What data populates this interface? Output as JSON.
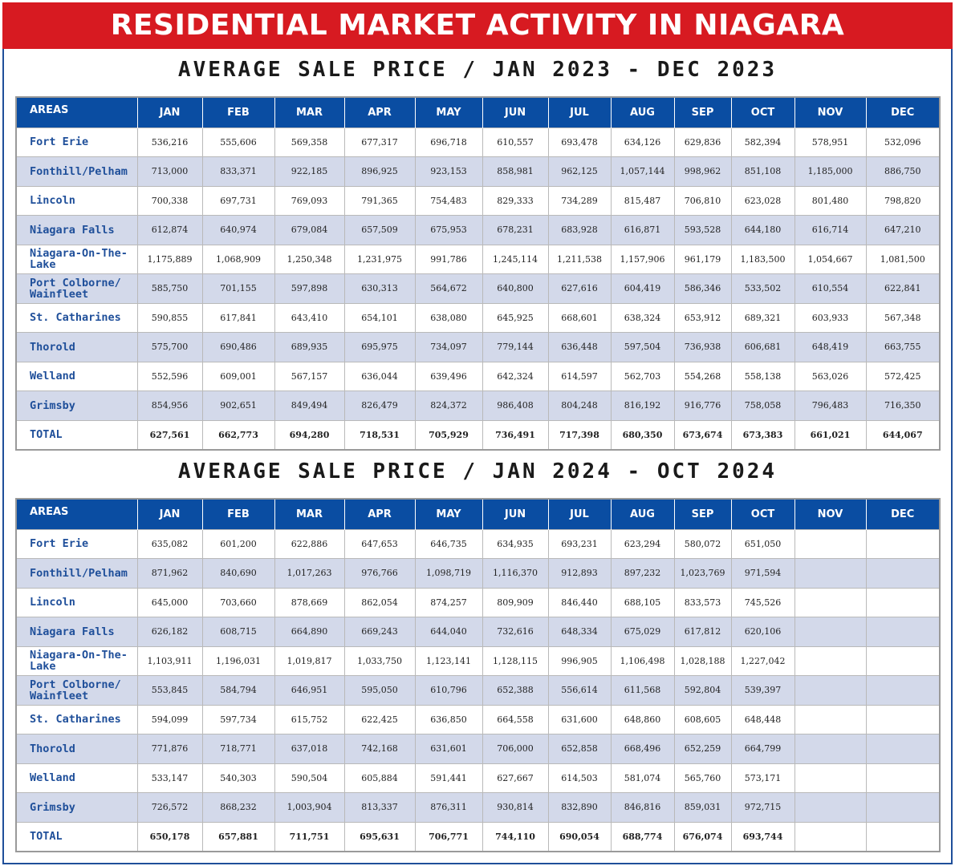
{
  "header": {
    "title": "RESIDENTIAL MARKET ACTIVITY IN NIAGARA"
  },
  "months": [
    "JAN",
    "FEB",
    "MAR",
    "APR",
    "MAY",
    "JUN",
    "JUL",
    "AUG",
    "SEP",
    "OCT",
    "NOV",
    "DEC"
  ],
  "tables": [
    {
      "title": "AVERAGE SALE PRICE / JAN 2023 - DEC 2023",
      "areas_header": "AREAS",
      "rows": [
        {
          "area": "Fort Erie",
          "values": [
            "536,216",
            "555,606",
            "569,358",
            "677,317",
            "696,718",
            "610,557",
            "693,478",
            "634,126",
            "629,836",
            "582,394",
            "578,951",
            "532,096"
          ]
        },
        {
          "area": "Fonthill/Pelham",
          "values": [
            "713,000",
            "833,371",
            "922,185",
            "896,925",
            "923,153",
            "858,981",
            "962,125",
            "1,057,144",
            "998,962",
            "851,108",
            "1,185,000",
            "886,750"
          ]
        },
        {
          "area": "Lincoln",
          "values": [
            "700,338",
            "697,731",
            "769,093",
            "791,365",
            "754,483",
            "829,333",
            "734,289",
            "815,487",
            "706,810",
            "623,028",
            "801,480",
            "798,820"
          ]
        },
        {
          "area": "Niagara Falls",
          "values": [
            "612,874",
            "640,974",
            "679,084",
            "657,509",
            "675,953",
            "678,231",
            "683,928",
            "616,871",
            "593,528",
            "644,180",
            "616,714",
            "647,210"
          ]
        },
        {
          "area": "Niagara-On-The-Lake",
          "values": [
            "1,175,889",
            "1,068,909",
            "1,250,348",
            "1,231,975",
            "991,786",
            "1,245,114",
            "1,211,538",
            "1,157,906",
            "961,179",
            "1,183,500",
            "1,054,667",
            "1,081,500"
          ]
        },
        {
          "area": "Port Colborne/ Wainfleet",
          "values": [
            "585,750",
            "701,155",
            "597,898",
            "630,313",
            "564,672",
            "640,800",
            "627,616",
            "604,419",
            "586,346",
            "533,502",
            "610,554",
            "622,841"
          ]
        },
        {
          "area": "St. Catharines",
          "values": [
            "590,855",
            "617,841",
            "643,410",
            "654,101",
            "638,080",
            "645,925",
            "668,601",
            "638,324",
            "653,912",
            "689,321",
            "603,933",
            "567,348"
          ]
        },
        {
          "area": "Thorold",
          "values": [
            "575,700",
            "690,486",
            "689,935",
            "695,975",
            "734,097",
            "779,144",
            "636,448",
            "597,504",
            "736,938",
            "606,681",
            "648,419",
            "663,755"
          ]
        },
        {
          "area": "Welland",
          "values": [
            "552,596",
            "609,001",
            "567,157",
            "636,044",
            "639,496",
            "642,324",
            "614,597",
            "562,703",
            "554,268",
            "558,138",
            "563,026",
            "572,425"
          ]
        },
        {
          "area": "Grimsby",
          "values": [
            "854,956",
            "902,651",
            "849,494",
            "826,479",
            "824,372",
            "986,408",
            "804,248",
            "816,192",
            "916,776",
            "758,058",
            "796,483",
            "716,350"
          ]
        },
        {
          "area": "TOTAL",
          "values": [
            "627,561",
            "662,773",
            "694,280",
            "718,531",
            "705,929",
            "736,491",
            "717,398",
            "680,350",
            "673,674",
            "673,383",
            "661,021",
            "644,067"
          ]
        }
      ]
    },
    {
      "title": "AVERAGE SALE PRICE / JAN 2024 - OCT 2024",
      "areas_header": "AREAS",
      "rows": [
        {
          "area": "Fort Erie",
          "values": [
            "635,082",
            "601,200",
            "622,886",
            "647,653",
            "646,735",
            "634,935",
            "693,231",
            "623,294",
            "580,072",
            "651,050",
            "",
            ""
          ]
        },
        {
          "area": "Fonthill/Pelham",
          "values": [
            "871,962",
            "840,690",
            "1,017,263",
            "976,766",
            "1,098,719",
            "1,116,370",
            "912,893",
            "897,232",
            "1,023,769",
            "971,594",
            "",
            ""
          ]
        },
        {
          "area": "Lincoln",
          "values": [
            "645,000",
            "703,660",
            "878,669",
            "862,054",
            "874,257",
            "809,909",
            "846,440",
            "688,105",
            "833,573",
            "745,526",
            "",
            ""
          ]
        },
        {
          "area": "Niagara Falls",
          "values": [
            "626,182",
            "608,715",
            "664,890",
            "669,243",
            "644,040",
            "732,616",
            "648,334",
            "675,029",
            "617,812",
            "620,106",
            "",
            ""
          ]
        },
        {
          "area": "Niagara-On-The-Lake",
          "values": [
            "1,103,911",
            "1,196,031",
            "1,019,817",
            "1,033,750",
            "1,123,141",
            "1,128,115",
            "996,905",
            "1,106,498",
            "1,028,188",
            "1,227,042",
            "",
            ""
          ]
        },
        {
          "area": "Port Colborne/ Wainfleet",
          "values": [
            "553,845",
            "584,794",
            "646,951",
            "595,050",
            "610,796",
            "652,388",
            "556,614",
            "611,568",
            "592,804",
            "539,397",
            "",
            ""
          ]
        },
        {
          "area": "St. Catharines",
          "values": [
            "594,099",
            "597,734",
            "615,752",
            "622,425",
            "636,850",
            "664,558",
            "631,600",
            "648,860",
            "608,605",
            "648,448",
            "",
            ""
          ]
        },
        {
          "area": "Thorold",
          "values": [
            "771,876",
            "718,771",
            "637,018",
            "742,168",
            "631,601",
            "706,000",
            "652,858",
            "668,496",
            "652,259",
            "664,799",
            "",
            ""
          ]
        },
        {
          "area": "Welland",
          "values": [
            "533,147",
            "540,303",
            "590,504",
            "605,884",
            "591,441",
            "627,667",
            "614,503",
            "581,074",
            "565,760",
            "573,171",
            "",
            ""
          ]
        },
        {
          "area": "Grimsby",
          "values": [
            "726,572",
            "868,232",
            "1,003,904",
            "813,337",
            "876,311",
            "930,814",
            "832,890",
            "846,816",
            "859,031",
            "972,715",
            "",
            ""
          ]
        },
        {
          "area": "TOTAL",
          "values": [
            "650,178",
            "657,881",
            "711,751",
            "695,631",
            "706,771",
            "744,110",
            "690,054",
            "688,774",
            "676,074",
            "693,744",
            "",
            ""
          ]
        }
      ]
    }
  ]
}
